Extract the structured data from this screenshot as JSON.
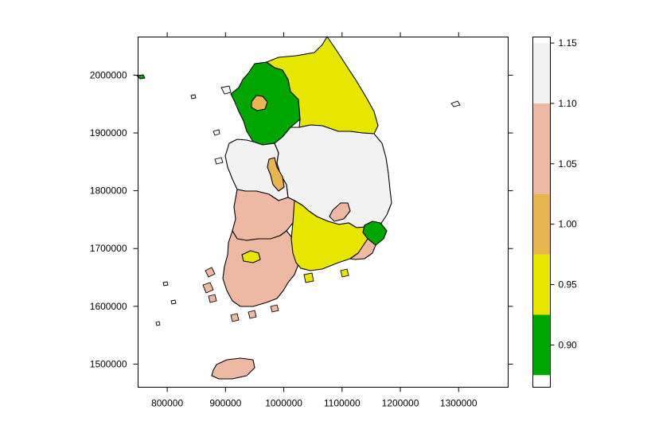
{
  "map": {
    "x_axis": {
      "tick_labels": [
        "800000",
        "900000",
        "1000000",
        "1100000",
        "1200000",
        "1300000"
      ],
      "tick_values": [
        800000,
        900000,
        1000000,
        1100000,
        1200000,
        1300000
      ],
      "range": [
        750000,
        1385000
      ]
    },
    "y_axis": {
      "tick_labels": [
        "1500000",
        "1600000",
        "1700000",
        "1800000",
        "1900000",
        "2000000"
      ],
      "tick_values": [
        1500000,
        1600000,
        1700000,
        1800000,
        1900000,
        2000000
      ],
      "range": [
        1460000,
        2066000
      ]
    },
    "regions": [
      {
        "key": "gyeonggi",
        "value": 0.9
      },
      {
        "key": "seoul",
        "value": 1.0
      },
      {
        "key": "gangwon",
        "value": 0.95
      },
      {
        "key": "chungnam",
        "value": 1.15
      },
      {
        "key": "sejong_daejeon",
        "value": 1.0
      },
      {
        "key": "chungbuk_gyeongbuk",
        "value": 1.15
      },
      {
        "key": "jeonbuk",
        "value": 1.1
      },
      {
        "key": "jeonnam",
        "value": 1.1
      },
      {
        "key": "gwangju",
        "value": 0.95
      },
      {
        "key": "gyeongnam",
        "value": 0.95
      },
      {
        "key": "daegu",
        "value": 1.1
      },
      {
        "key": "ulsan_busan",
        "value": 0.9
      },
      {
        "key": "busan_south",
        "value": 1.1
      },
      {
        "key": "jeju",
        "value": 1.1
      }
    ]
  },
  "legend": {
    "bins": [
      {
        "from": 0.875,
        "to": 0.925,
        "color": "#00A600"
      },
      {
        "from": 0.925,
        "to": 0.975,
        "color": "#E6E600"
      },
      {
        "from": 0.975,
        "to": 1.025,
        "color": "#E8B54F"
      },
      {
        "from": 1.025,
        "to": 1.1,
        "color": "#EDB9A2"
      },
      {
        "from": 1.1,
        "to": 1.15,
        "color": "#F2F2F2"
      }
    ],
    "range": [
      0.865,
      1.155
    ],
    "tick_labels": [
      "0.90",
      "0.95",
      "1.00",
      "1.05",
      "1.10",
      "1.15"
    ],
    "tick_values": [
      0.9,
      0.95,
      1.0,
      1.05,
      1.1,
      1.15
    ]
  }
}
